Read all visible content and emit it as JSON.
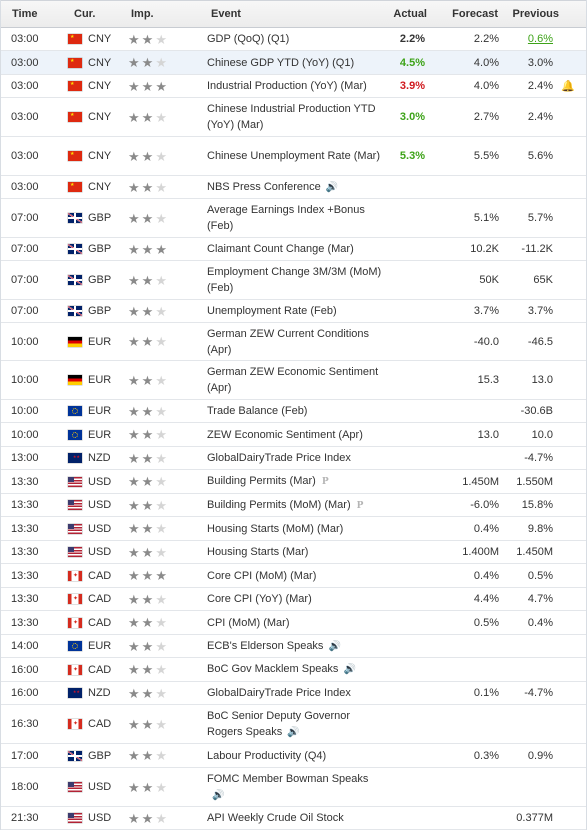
{
  "headers": {
    "time": "Time",
    "currency": "Cur.",
    "importance": "Imp.",
    "event": "Event",
    "actual": "Actual",
    "forecast": "Forecast",
    "previous": "Previous"
  },
  "colors": {
    "green": "#3da318",
    "red": "#d0191e",
    "highlight": "#edf3fa"
  },
  "rows": [
    {
      "time": "03:00",
      "currency": "CNY",
      "flag": "china",
      "stars": 2,
      "event": "GDP (QoQ) (Q1)",
      "actual": "2.2%",
      "actual_color": "black",
      "forecast": "2.2%",
      "previous": "0.6%",
      "previous_color": "green",
      "highlight": false,
      "h": 23
    },
    {
      "time": "03:00",
      "currency": "CNY",
      "flag": "china",
      "stars": 2,
      "event": "Chinese GDP YTD (YoY) (Q1)",
      "actual": "4.5%",
      "actual_color": "green",
      "forecast": "4.0%",
      "previous": "3.0%",
      "highlight": true,
      "h": 24
    },
    {
      "time": "03:00",
      "currency": "CNY",
      "flag": "china",
      "stars": 3,
      "event": "Industrial Production (YoY) (Mar)",
      "actual": "3.9%",
      "actual_color": "red",
      "forecast": "4.0%",
      "previous": "2.4%",
      "bell": true,
      "h": 23
    },
    {
      "time": "03:00",
      "currency": "CNY",
      "flag": "china",
      "stars": 2,
      "event": "Chinese Industrial Production YTD (YoY) (Mar)",
      "actual": "3.0%",
      "actual_color": "green",
      "forecast": "2.7%",
      "previous": "2.4%",
      "h": 39
    },
    {
      "time": "03:00",
      "currency": "CNY",
      "flag": "china",
      "stars": 2,
      "event": "Chinese Unemployment Rate (Mar)",
      "actual": "5.3%",
      "actual_color": "green",
      "forecast": "5.5%",
      "previous": "5.6%",
      "h": 39
    },
    {
      "time": "03:00",
      "currency": "CNY",
      "flag": "china",
      "stars": 2,
      "event": "NBS Press Conference",
      "speaker": true,
      "h": 23
    },
    {
      "time": "07:00",
      "currency": "GBP",
      "flag": "uk",
      "stars": 2,
      "event": "Average Earnings Index +Bonus (Feb)",
      "forecast": "5.1%",
      "previous": "5.7%",
      "h": 39
    },
    {
      "time": "07:00",
      "currency": "GBP",
      "flag": "uk",
      "stars": 3,
      "event": "Claimant Count Change (Mar)",
      "forecast": "10.2K",
      "previous": "-11.2K",
      "h": 23
    },
    {
      "time": "07:00",
      "currency": "GBP",
      "flag": "uk",
      "stars": 2,
      "event": "Employment Change 3M/3M (MoM) (Feb)",
      "forecast": "50K",
      "previous": "65K",
      "h": 39
    },
    {
      "time": "07:00",
      "currency": "GBP",
      "flag": "uk",
      "stars": 2,
      "event": "Unemployment Rate (Feb)",
      "forecast": "3.7%",
      "previous": "3.7%",
      "h": 23
    },
    {
      "time": "10:00",
      "currency": "EUR",
      "flag": "germany",
      "stars": 2,
      "event": "German ZEW Current Conditions (Apr)",
      "forecast": "-40.0",
      "previous": "-46.5",
      "h": 38
    },
    {
      "time": "10:00",
      "currency": "EUR",
      "flag": "germany",
      "stars": 2,
      "event": "German ZEW Economic Sentiment (Apr)",
      "forecast": "15.3",
      "previous": "13.0",
      "h": 39
    },
    {
      "time": "10:00",
      "currency": "EUR",
      "flag": "eu",
      "stars": 2,
      "event": "Trade Balance (Feb)",
      "previous": "-30.6B",
      "h": 23
    },
    {
      "time": "10:00",
      "currency": "EUR",
      "flag": "eu",
      "stars": 2,
      "event": "ZEW Economic Sentiment (Apr)",
      "forecast": "13.0",
      "previous": "10.0",
      "h": 24
    },
    {
      "time": "13:00",
      "currency": "NZD",
      "flag": "nz",
      "stars": 2,
      "event": "GlobalDairyTrade Price Index",
      "previous": "-4.7%",
      "h": 23
    },
    {
      "time": "13:30",
      "currency": "USD",
      "flag": "us",
      "stars": 2,
      "event": "Building Permits (Mar)",
      "prelim": true,
      "forecast": "1.450M",
      "previous": "1.550M",
      "h": 24
    },
    {
      "time": "13:30",
      "currency": "USD",
      "flag": "us",
      "stars": 2,
      "event": "Building Permits (MoM) (Mar)",
      "prelim": true,
      "forecast": "-6.0%",
      "previous": "15.8%",
      "h": 23
    },
    {
      "time": "13:30",
      "currency": "USD",
      "flag": "us",
      "stars": 2,
      "event": "Housing Starts (MoM) (Mar)",
      "forecast": "0.4%",
      "previous": "9.8%",
      "h": 24
    },
    {
      "time": "13:30",
      "currency": "USD",
      "flag": "us",
      "stars": 2,
      "event": "Housing Starts (Mar)",
      "forecast": "1.400M",
      "previous": "1.450M",
      "h": 23
    },
    {
      "time": "13:30",
      "currency": "CAD",
      "flag": "canada",
      "stars": 3,
      "event": "Core CPI (MoM) (Mar)",
      "forecast": "0.4%",
      "previous": "0.5%",
      "h": 24
    },
    {
      "time": "13:30",
      "currency": "CAD",
      "flag": "canada",
      "stars": 2,
      "event": "Core CPI (YoY) (Mar)",
      "forecast": "4.4%",
      "previous": "4.7%",
      "h": 23
    },
    {
      "time": "13:30",
      "currency": "CAD",
      "flag": "canada",
      "stars": 2,
      "event": "CPI (MoM) (Mar)",
      "forecast": "0.5%",
      "previous": "0.4%",
      "h": 24
    },
    {
      "time": "14:00",
      "currency": "EUR",
      "flag": "eu",
      "stars": 2,
      "event": "ECB's Elderson Speaks",
      "speaker": true,
      "h": 23
    },
    {
      "time": "16:00",
      "currency": "CAD",
      "flag": "canada",
      "stars": 2,
      "event": "BoC Gov Macklem Speaks",
      "speaker": true,
      "h": 24
    },
    {
      "time": "16:00",
      "currency": "NZD",
      "flag": "nz",
      "stars": 2,
      "event": "GlobalDairyTrade Price Index",
      "forecast": "0.1%",
      "previous": "-4.7%",
      "h": 23
    },
    {
      "time": "16:30",
      "currency": "CAD",
      "flag": "canada",
      "stars": 2,
      "event": "BoC Senior Deputy Governor Rogers Speaks",
      "speaker": true,
      "h": 39
    },
    {
      "time": "17:00",
      "currency": "GBP",
      "flag": "uk",
      "stars": 2,
      "event": "Labour Productivity (Q4)",
      "forecast": "0.3%",
      "previous": "0.9%",
      "h": 24
    },
    {
      "time": "18:00",
      "currency": "USD",
      "flag": "us",
      "stars": 2,
      "event": "FOMC Member Bowman Speaks",
      "speaker": true,
      "speaker_newline": true,
      "h": 39
    },
    {
      "time": "21:30",
      "currency": "USD",
      "flag": "us",
      "stars": 2,
      "event": "API Weekly Crude Oil Stock",
      "previous": "0.377M",
      "h": 23
    }
  ]
}
